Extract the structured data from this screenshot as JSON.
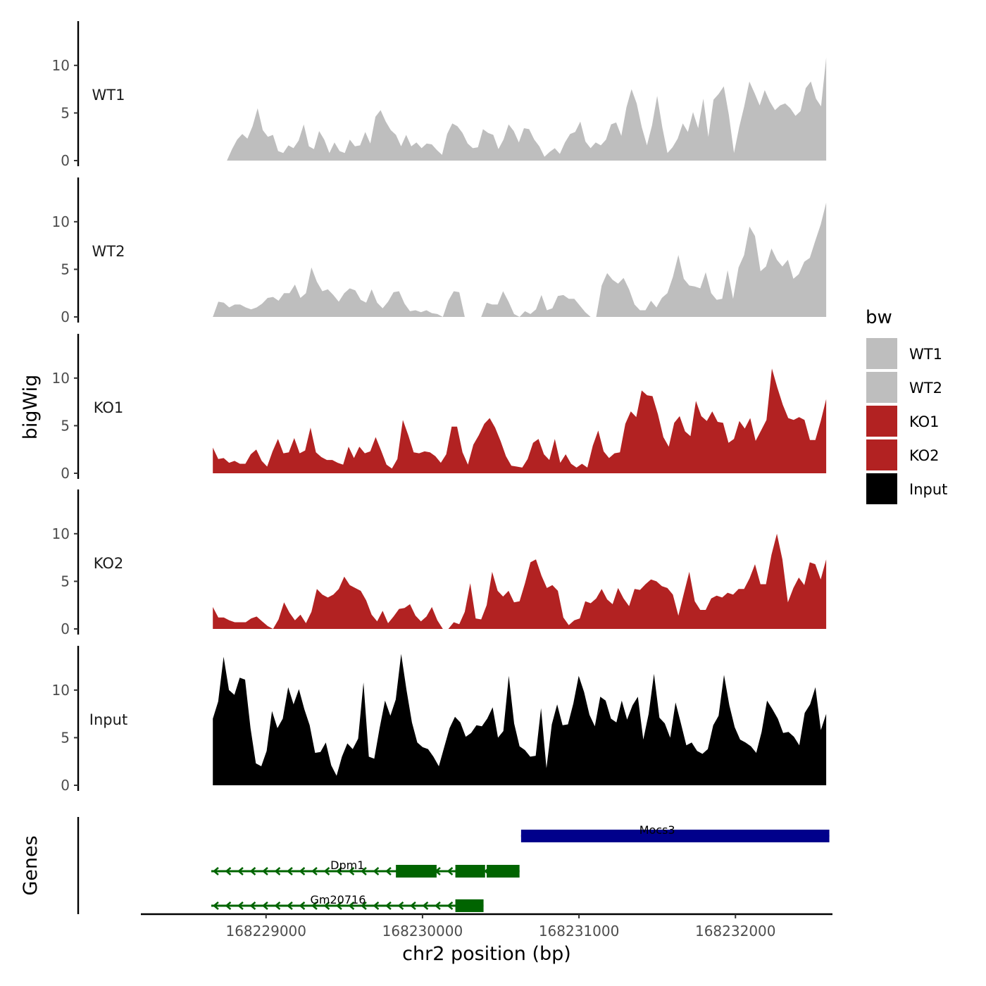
{
  "chart_data": {
    "type": "area",
    "ylabel": "bigWig",
    "xlabel": "chr2 position (bp)",
    "xlim": [
      168228200,
      168232620
    ],
    "x_range": [
      168228660,
      168232580
    ],
    "ylim": [
      0,
      14.5
    ],
    "y_ticks": [
      0,
      5,
      10
    ],
    "x_ticks": [
      168229000,
      168230000,
      168231000,
      168232000
    ],
    "x_tick_labels": [
      "168229000",
      "168230000",
      "168231000",
      "168232000"
    ],
    "y_tick_labels": [
      "0",
      "5",
      "10"
    ],
    "legend": {
      "title": "bw",
      "position": "right",
      "entries": [
        {
          "label": "WT1",
          "color": "#bebebe"
        },
        {
          "label": "WT2",
          "color": "#bebebe"
        },
        {
          "label": "KO1",
          "color": "#b22222"
        },
        {
          "label": "KO2",
          "color": "#b22222"
        },
        {
          "label": "Input",
          "color": "#000000"
        }
      ]
    },
    "tracks": [
      {
        "name": "WT1",
        "color": "#bebebe",
        "start": 168228750,
        "values": [
          0.0,
          1.2,
          2.2,
          2.8,
          2.3,
          3.6,
          5.5,
          3.2,
          2.5,
          2.7,
          1.0,
          0.8,
          1.6,
          1.3,
          2.1,
          3.8,
          1.5,
          1.2,
          3.1,
          2.2,
          0.8,
          1.9,
          1.0,
          0.8,
          2.2,
          1.5,
          1.6,
          3.0,
          1.8,
          4.6,
          5.3,
          4.1,
          3.2,
          2.7,
          1.5,
          2.7,
          1.5,
          1.9,
          1.3,
          1.8,
          1.7,
          1.1,
          0.6,
          2.8,
          3.9,
          3.6,
          2.9,
          1.8,
          1.3,
          1.4,
          3.3,
          2.9,
          2.7,
          1.2,
          2.2,
          3.8,
          3.1,
          1.9,
          3.4,
          3.3,
          2.2,
          1.5,
          0.4,
          0.9,
          1.3,
          0.7,
          1.9,
          2.8,
          3.0,
          4.1,
          2.0,
          1.3,
          1.9,
          1.6,
          2.2,
          3.8,
          4.0,
          2.6,
          5.6,
          7.5,
          6.0,
          3.5,
          1.6,
          3.7,
          6.8,
          3.5,
          0.8,
          1.4,
          2.3,
          3.9,
          3.0,
          5.1,
          3.4,
          6.5,
          2.5,
          6.4,
          7.0,
          7.8,
          4.8,
          0.8,
          3.5,
          5.7,
          8.3,
          7.1,
          5.8,
          7.4,
          6.2,
          5.3,
          5.8,
          6.0,
          5.5,
          4.7,
          5.2,
          7.6,
          8.3,
          6.5,
          5.7,
          10.8
        ]
      },
      {
        "name": "WT2",
        "color": "#bebebe",
        "start": 168228660,
        "values": [
          0.0,
          1.6,
          1.5,
          1.0,
          1.3,
          1.3,
          1.0,
          0.8,
          1.0,
          1.4,
          2.0,
          2.1,
          1.7,
          2.5,
          2.5,
          3.4,
          2.0,
          2.5,
          5.2,
          3.7,
          2.7,
          2.9,
          2.3,
          1.6,
          2.5,
          3.0,
          2.8,
          1.8,
          1.5,
          2.9,
          1.5,
          0.9,
          1.6,
          2.6,
          2.7,
          1.4,
          0.6,
          0.7,
          0.5,
          0.7,
          0.4,
          0.3,
          0.0,
          1.7,
          2.7,
          2.6,
          0.0,
          0.0,
          0.0,
          0.0,
          1.5,
          1.3,
          1.3,
          2.7,
          1.6,
          0.3,
          0.0,
          0.6,
          0.3,
          0.8,
          2.3,
          0.7,
          0.9,
          2.2,
          2.3,
          1.9,
          1.9,
          1.2,
          0.5,
          0.0,
          0.0,
          3.3,
          4.6,
          3.9,
          3.5,
          4.1,
          2.9,
          1.3,
          0.7,
          0.7,
          1.7,
          1.0,
          2.0,
          2.5,
          4.2,
          6.5,
          4.0,
          3.3,
          3.2,
          3.0,
          4.7,
          2.5,
          1.8,
          1.9,
          4.9,
          1.9,
          5.2,
          6.5,
          9.5,
          8.5,
          4.8,
          5.3,
          7.2,
          6.0,
          5.3,
          6.0,
          4.0,
          4.5,
          5.8,
          6.2,
          8.0,
          9.7,
          12.0
        ]
      },
      {
        "name": "KO1",
        "color": "#b22222",
        "start": 168228660,
        "values": [
          2.7,
          1.5,
          1.6,
          1.1,
          1.3,
          1.0,
          1.0,
          2.0,
          2.5,
          1.3,
          0.7,
          2.3,
          3.6,
          2.1,
          2.2,
          3.7,
          2.1,
          2.4,
          4.8,
          2.2,
          1.7,
          1.4,
          1.4,
          1.1,
          0.9,
          2.8,
          1.6,
          2.8,
          2.1,
          2.3,
          3.8,
          2.4,
          0.9,
          0.5,
          1.5,
          5.6,
          4.0,
          2.2,
          2.1,
          2.3,
          2.2,
          1.8,
          1.1,
          2.0,
          4.9,
          4.9,
          2.2,
          0.9,
          3.0,
          4.0,
          5.2,
          5.8,
          4.8,
          3.4,
          1.8,
          0.8,
          0.7,
          0.6,
          1.5,
          3.2,
          3.6,
          2.0,
          1.4,
          3.6,
          1.1,
          2.0,
          1.0,
          0.6,
          1.0,
          0.6,
          2.9,
          4.5,
          2.3,
          1.6,
          2.1,
          2.2,
          5.2,
          6.5,
          5.9,
          8.7,
          8.2,
          8.1,
          6.2,
          3.8,
          2.8,
          5.3,
          6.0,
          4.4,
          3.9,
          7.6,
          6.0,
          5.5,
          6.5,
          5.4,
          5.3,
          3.2,
          3.6,
          5.5,
          4.7,
          5.8,
          3.4,
          4.5,
          5.6,
          11.0,
          9.0,
          7.2,
          5.8,
          5.6,
          5.9,
          5.6,
          3.5,
          3.5,
          5.5,
          7.8
        ]
      },
      {
        "name": "KO2",
        "color": "#b22222",
        "start": 168228660,
        "values": [
          2.3,
          1.2,
          1.2,
          0.9,
          0.7,
          0.7,
          0.7,
          1.1,
          1.3,
          0.8,
          0.3,
          0.0,
          1.0,
          2.8,
          1.7,
          0.9,
          1.5,
          0.6,
          1.8,
          4.2,
          3.6,
          3.3,
          3.6,
          4.2,
          5.5,
          4.6,
          4.3,
          4.0,
          3.0,
          1.5,
          0.8,
          1.9,
          0.6,
          1.3,
          2.1,
          2.2,
          2.6,
          1.4,
          0.8,
          1.3,
          2.3,
          0.9,
          0.0,
          0.0,
          0.7,
          0.5,
          1.8,
          4.8,
          1.1,
          1.0,
          2.5,
          6.0,
          4.0,
          3.4,
          4.0,
          2.8,
          2.9,
          4.8,
          7.0,
          7.3,
          5.6,
          4.3,
          4.6,
          4.0,
          1.2,
          0.4,
          0.9,
          1.1,
          2.9,
          2.7,
          3.2,
          4.2,
          3.1,
          2.6,
          4.3,
          3.2,
          2.4,
          4.2,
          4.1,
          4.7,
          5.2,
          5.0,
          4.5,
          4.3,
          3.6,
          1.4,
          3.7,
          6.0,
          2.9,
          2.0,
          2.0,
          3.2,
          3.5,
          3.3,
          3.8,
          3.6,
          4.2,
          4.2,
          5.3,
          6.8,
          4.7,
          4.7,
          7.8,
          10.0,
          7.3,
          2.8,
          4.3,
          5.4,
          4.6,
          7.0,
          6.8,
          5.2,
          7.3
        ]
      },
      {
        "name": "Input",
        "color": "#000000",
        "start": 168228660,
        "values": [
          7.0,
          8.8,
          13.5,
          10.0,
          9.5,
          11.3,
          11.1,
          6.0,
          2.3,
          2.0,
          3.6,
          7.8,
          6.0,
          7.0,
          10.3,
          8.5,
          10.1,
          8.0,
          6.3,
          3.4,
          3.5,
          4.5,
          2.1,
          1.0,
          3.0,
          4.4,
          3.8,
          4.9,
          10.8,
          3.0,
          2.8,
          6.0,
          8.9,
          7.3,
          9.0,
          13.8,
          10.0,
          6.6,
          4.5,
          4.0,
          3.8,
          3.0,
          2.0,
          4.0,
          6.0,
          7.2,
          6.6,
          5.1,
          5.5,
          6.3,
          6.2,
          7.0,
          8.2,
          5.0,
          5.7,
          11.5,
          6.5,
          4.1,
          3.7,
          3.0,
          3.1,
          8.1,
          1.8,
          6.4,
          8.5,
          6.3,
          6.4,
          8.6,
          11.5,
          9.8,
          7.4,
          6.2,
          9.3,
          8.9,
          7.0,
          6.6,
          8.9,
          6.9,
          8.4,
          9.3,
          4.8,
          7.5,
          11.7,
          7.1,
          6.5,
          5.0,
          8.7,
          6.5,
          4.2,
          4.5,
          3.6,
          3.3,
          3.8,
          6.3,
          7.3,
          11.6,
          8.4,
          6.1,
          4.8,
          4.5,
          4.1,
          3.4,
          5.6,
          8.9,
          8.0,
          7.0,
          5.5,
          5.6,
          5.1,
          4.2,
          7.6,
          8.5,
          10.3,
          5.8,
          7.5
        ]
      }
    ],
    "genes": [
      {
        "name": "Mocs3",
        "strand": "+",
        "color": "#00008b",
        "start": 168230630,
        "end": 168232600,
        "exons": [
          [
            168230630,
            168232600
          ]
        ],
        "label_x": 168231500
      },
      {
        "name": "Dpm1",
        "strand": "-",
        "color": "#006400",
        "start": 168228650,
        "end": 168230620,
        "exons": [
          [
            168229830,
            168230090
          ],
          [
            168230210,
            168230400
          ],
          [
            168230410,
            168230620
          ]
        ],
        "label_x": 168229520
      },
      {
        "name": "Gm20716",
        "strand": "-",
        "color": "#006400",
        "start": 168228650,
        "end": 168230390,
        "exons": [
          [
            168230210,
            168230390
          ]
        ],
        "label_x": 168229460
      }
    ],
    "genes_panel_label": "Genes"
  }
}
